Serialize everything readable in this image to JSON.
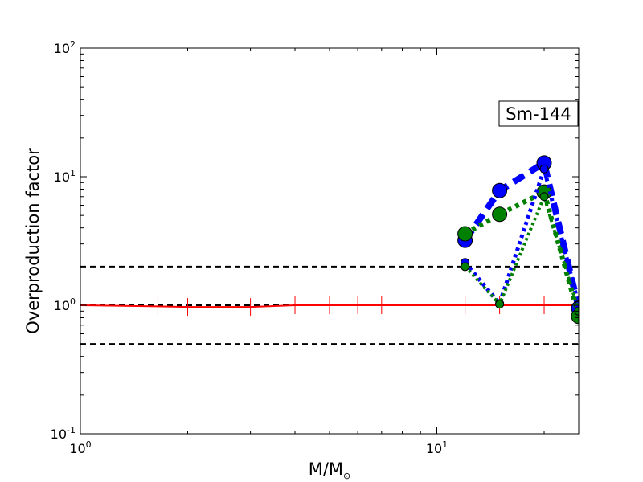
{
  "chart_data": {
    "type": "line",
    "title": "",
    "xlabel": "M/M",
    "xlabel_subscript": "⊙",
    "ylabel": "Overproduction factor",
    "xscale": "log",
    "yscale": "log",
    "xlim": [
      1,
      25
    ],
    "ylim": [
      0.1,
      100
    ],
    "grid": false,
    "x_ticks": [
      {
        "base": "10",
        "exp": "0",
        "value": 1
      },
      {
        "base": "10",
        "exp": "1",
        "value": 10
      }
    ],
    "y_ticks": [
      {
        "base": "10",
        "exp": "-1",
        "value": 0.1
      },
      {
        "base": "10",
        "exp": "0",
        "value": 1
      },
      {
        "base": "10",
        "exp": "1",
        "value": 10
      },
      {
        "base": "10",
        "exp": "2",
        "value": 100
      }
    ],
    "annotation": "Sm-144",
    "reference_lines": [
      0.5,
      1,
      2
    ],
    "colors": {
      "reference": "#000000",
      "red": "#ff0000",
      "blue": "#0000ff",
      "green": "#008000"
    },
    "series": [
      {
        "color": "red",
        "style": "solid",
        "marker": "tick",
        "width": 2,
        "x": [
          1,
          1.65,
          2,
          3,
          4,
          5,
          6,
          7,
          12,
          15,
          20,
          25
        ],
        "y": [
          1.0,
          0.98,
          0.97,
          0.97,
          1.0,
          1.0,
          1.0,
          1.0,
          1.0,
          1.0,
          1.0,
          1.0
        ]
      },
      {
        "color": "blue",
        "style": "dashed",
        "marker": "circle",
        "width": 8,
        "marker_size": 9,
        "x": [
          12,
          15,
          20,
          25
        ],
        "y": [
          3.2,
          7.8,
          12.8,
          0.95
        ]
      },
      {
        "color": "green",
        "style": "dotted",
        "marker": "circle",
        "width": 6,
        "marker_size": 9,
        "x": [
          12,
          15,
          20,
          25
        ],
        "y": [
          3.6,
          5.1,
          7.6,
          0.82
        ]
      },
      {
        "color": "blue",
        "style": "dotted",
        "marker": "circle",
        "width": 5,
        "marker_size": 5,
        "x": [
          12,
          15,
          20,
          25
        ],
        "y": [
          2.15,
          1.03,
          11.5,
          1.0
        ]
      },
      {
        "color": "green",
        "style": "dotted",
        "marker": "circle",
        "width": 4,
        "marker_size": 5,
        "x": [
          12,
          15,
          20,
          25
        ],
        "y": [
          2.0,
          1.02,
          7.0,
          0.9
        ]
      }
    ]
  }
}
